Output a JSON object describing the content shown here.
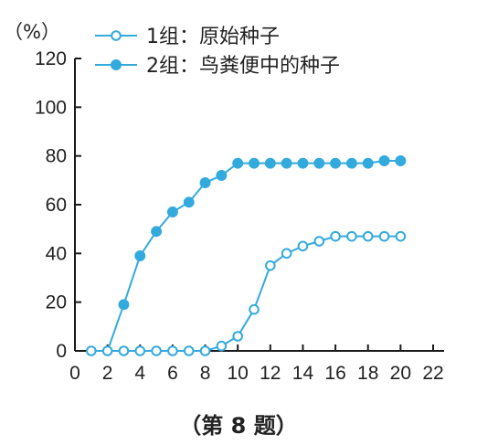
{
  "chart_data": {
    "type": "line",
    "unit_label": "（%）",
    "caption": "（第 8 题）",
    "xlim": [
      0,
      22
    ],
    "ylim": [
      0,
      120
    ],
    "x_ticks": [
      "0",
      "2",
      "4",
      "6",
      "8",
      "10",
      "12",
      "14",
      "16",
      "18",
      "20",
      "22"
    ],
    "y_ticks": [
      "0",
      "20",
      "40",
      "60",
      "80",
      "100",
      "120"
    ],
    "legend_position": "top-right",
    "colors": {
      "line": "#33aadd",
      "axis": "#1a1a1a"
    },
    "series": [
      {
        "name": "1组：原始种子",
        "marker": "open-circle",
        "x": [
          1,
          2,
          3,
          4,
          5,
          6,
          7,
          8,
          9,
          10,
          11,
          12,
          13,
          14,
          15,
          16,
          17,
          18,
          19,
          20
        ],
        "y": [
          0,
          0,
          0,
          0,
          0,
          0,
          0,
          0,
          2,
          6,
          17,
          35,
          40,
          43,
          45,
          47,
          47,
          47,
          47,
          47
        ]
      },
      {
        "name": "2组：鸟粪便中的种子",
        "marker": "filled-circle",
        "x": [
          3,
          4,
          5,
          6,
          7,
          8,
          9,
          10,
          11,
          12,
          13,
          14,
          15,
          16,
          17,
          18,
          19,
          20
        ],
        "y": [
          19,
          39,
          49,
          57,
          61,
          69,
          72,
          77,
          77,
          77,
          77,
          77,
          77,
          77,
          77,
          77,
          78,
          78
        ]
      }
    ]
  }
}
